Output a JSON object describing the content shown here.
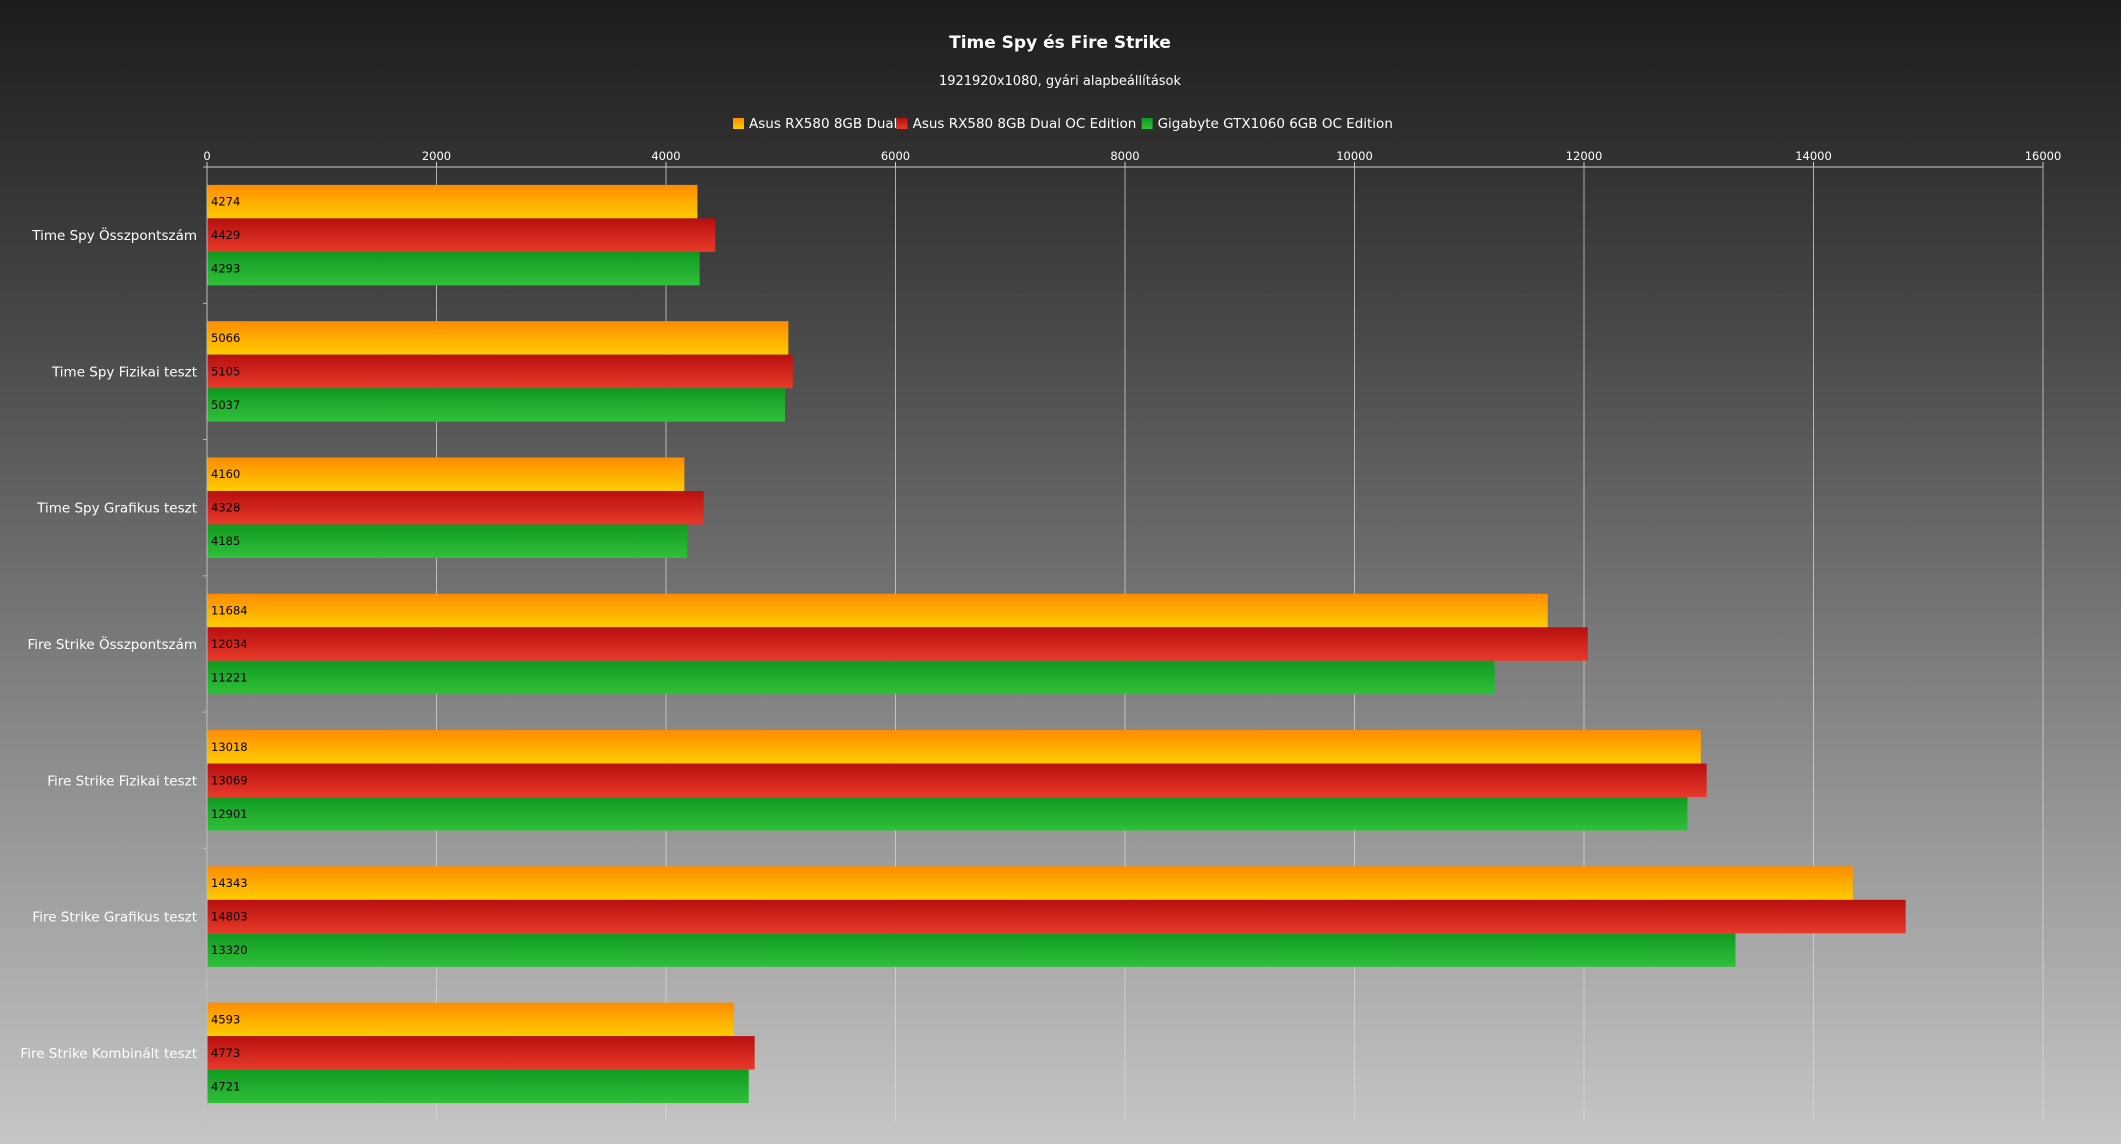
{
  "chart_data": {
    "type": "bar",
    "orientation": "horizontal",
    "title": "Time Spy és Fire Strike",
    "subtitle": "1921920x1080, gyári alapbeállítások",
    "categories": [
      "Time Spy Összpontszám",
      "Time Spy Fizikai teszt",
      "Time Spy Grafikus teszt",
      "Fire Strike Összpontszám",
      "Fire Strike Fizikai teszt",
      "Fire Strike Grafikus teszt",
      "Fire Strike Kombinált teszt"
    ],
    "series": [
      {
        "name": "Asus RX580 8GB Dual",
        "color": "#ff8c00",
        "color_light": "#ffcc00",
        "values": [
          4274,
          5066,
          4160,
          11684,
          13018,
          14343,
          4593
        ]
      },
      {
        "name": "Asus RX580 8GB Dual OC Edition",
        "color": "#b80f0f",
        "color_light": "#e83a2a",
        "values": [
          4429,
          5105,
          4328,
          12034,
          13069,
          14803,
          4773
        ]
      },
      {
        "name": "Gigabyte GTX1060 6GB OC Edition",
        "color": "#109a20",
        "color_light": "#30c03a",
        "values": [
          4293,
          5037,
          4185,
          11221,
          12901,
          13320,
          4721
        ]
      }
    ],
    "xlim": [
      0,
      16000
    ],
    "xticks": [
      0,
      2000,
      4000,
      6000,
      8000,
      10000,
      12000,
      14000,
      16000
    ],
    "xaxis_position": "top",
    "grid": true,
    "legend_position": "top-center",
    "data_labels": true
  }
}
